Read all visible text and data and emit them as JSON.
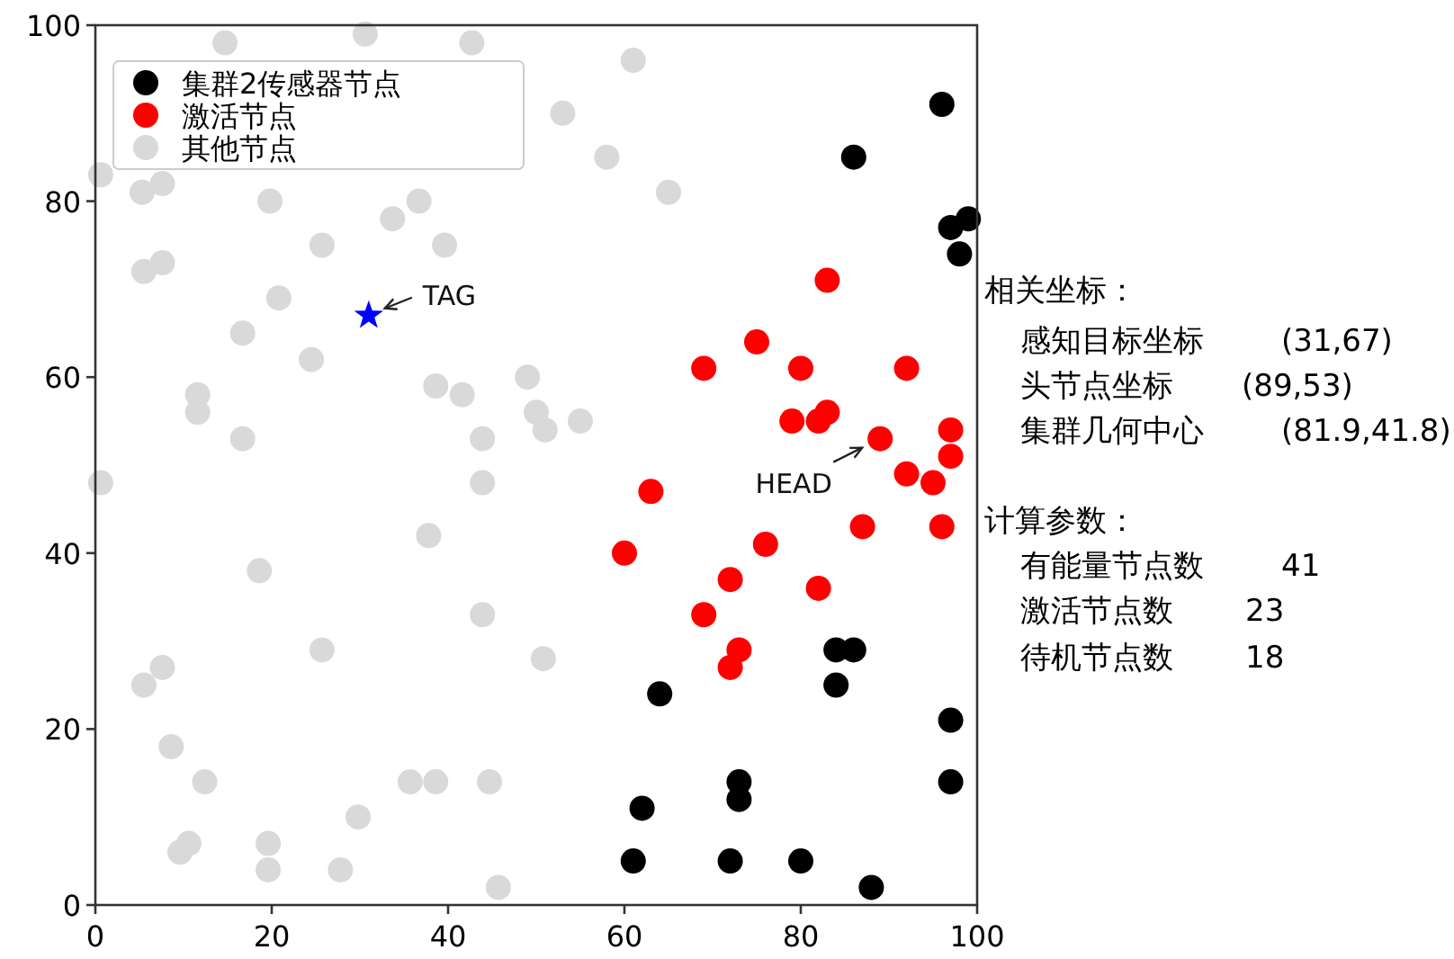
{
  "chart_data": {
    "type": "scatter",
    "xlim": [
      0,
      100
    ],
    "ylim": [
      0,
      100
    ],
    "xticks": [
      0,
      20,
      40,
      60,
      80,
      100
    ],
    "yticks": [
      0,
      20,
      40,
      60,
      80,
      100
    ],
    "grid": false,
    "legend": "top left",
    "marker": "circle",
    "series": [
      {
        "name": "集群2传感器节点",
        "color": "#000000",
        "x": [
          96,
          86,
          97,
          99,
          98,
          64,
          62,
          73,
          73,
          61,
          72,
          80,
          88,
          84,
          86,
          84,
          97,
          97
        ],
        "values": [
          91,
          85,
          77,
          78,
          74,
          24,
          11,
          14,
          12,
          5,
          5,
          5,
          2,
          29,
          29,
          25,
          21,
          14
        ]
      },
      {
        "name": "激活节点",
        "color": "#ff0000",
        "x": [
          83,
          75,
          69,
          80,
          92,
          79,
          82,
          83,
          89,
          97,
          97,
          92,
          95,
          63,
          60,
          76,
          87,
          96,
          72,
          82,
          69,
          73,
          72
        ],
        "values": [
          71,
          64,
          61,
          61,
          61,
          55,
          55,
          56,
          53,
          54,
          51,
          49,
          48,
          47,
          40,
          41,
          43,
          43,
          37,
          36,
          33,
          29,
          27
        ]
      },
      {
        "name": "其他节点",
        "color": "#d9d9d9",
        "x": [
          0.6,
          14.7,
          30.6,
          42.7,
          5.3,
          7.6,
          5.5,
          7.6,
          19.8,
          36.7,
          33.7,
          25.7,
          39.6,
          20.8,
          16.7,
          24.5,
          11.6,
          11.6,
          16.7,
          38.6,
          41.6,
          43.9,
          49,
          50,
          51,
          55,
          61,
          53,
          58,
          65,
          0.6,
          43.9,
          37.8,
          18.6,
          43.9,
          25.7,
          50.8,
          7.6,
          5.5,
          8.6,
          12.4,
          35.7,
          38.6,
          44.7,
          29.8,
          10.6,
          9.6,
          19.6,
          19.6,
          27.8,
          45.7
        ],
        "values": [
          83,
          98,
          99,
          98,
          81,
          82,
          72,
          73,
          80,
          80,
          78,
          75,
          75,
          69,
          65,
          62,
          58,
          56,
          53,
          59,
          58,
          53,
          60,
          56,
          54,
          55,
          96,
          90,
          85,
          81,
          48,
          48,
          42,
          38,
          33,
          29,
          28,
          27,
          25,
          18,
          14,
          14,
          14,
          14,
          10,
          7,
          6,
          7,
          4,
          4,
          2
        ]
      },
      {
        "color": "#0000ff",
        "marker": "star",
        "x": [
          31
        ],
        "values": [
          67
        ]
      }
    ],
    "annotations": [
      {
        "text": "TAG",
        "x": 31,
        "y": 67
      },
      {
        "text": "HEAD",
        "x": 89,
        "y": 53
      },
      "相关坐标：",
      "感知目标坐标",
      "(31,67)",
      "头节点坐标",
      "(89,53)",
      "集群几何中心",
      "(81.9,41.8)",
      "计算参数：",
      "有能量节点数",
      "41",
      "激活节点数",
      "23",
      "待机节点数",
      "18"
    ]
  }
}
